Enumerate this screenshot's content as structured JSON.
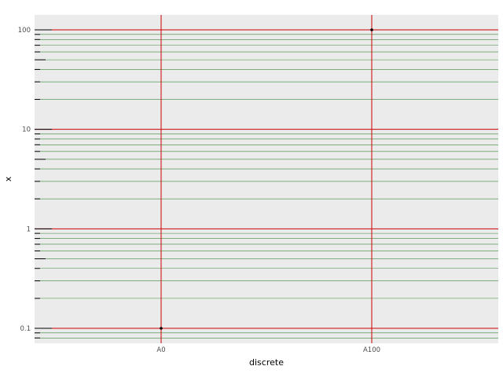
{
  "chart_data": {
    "type": "scatter",
    "xlabel": "discrete",
    "ylabel": "x",
    "x_type": "categorical",
    "categories": [
      "A0",
      "A100"
    ],
    "y_scale": "log10",
    "ylim": [
      0.075,
      140
    ],
    "y_major_ticks": [
      0.1,
      1,
      10,
      100
    ],
    "y_major_tick_labels": [
      "0.1",
      "1",
      "10",
      "100"
    ],
    "y_minor_ticks": [
      0.08,
      0.09,
      0.2,
      0.3,
      0.4,
      0.5,
      0.6,
      0.7,
      0.8,
      0.9,
      2,
      3,
      4,
      5,
      6,
      7,
      8,
      9,
      20,
      30,
      40,
      50,
      60,
      70,
      80,
      90
    ],
    "points": [
      {
        "category": "A0",
        "y": 0.1
      },
      {
        "category": "A100",
        "y": 100
      }
    ],
    "legend": "none",
    "grid": true,
    "colors": {
      "panel_background": "#ebebeb",
      "major_grid": "#cc0000",
      "minor_grid": "#3a8a3a",
      "points": "#000000",
      "rug_ticks": "#000000"
    }
  }
}
